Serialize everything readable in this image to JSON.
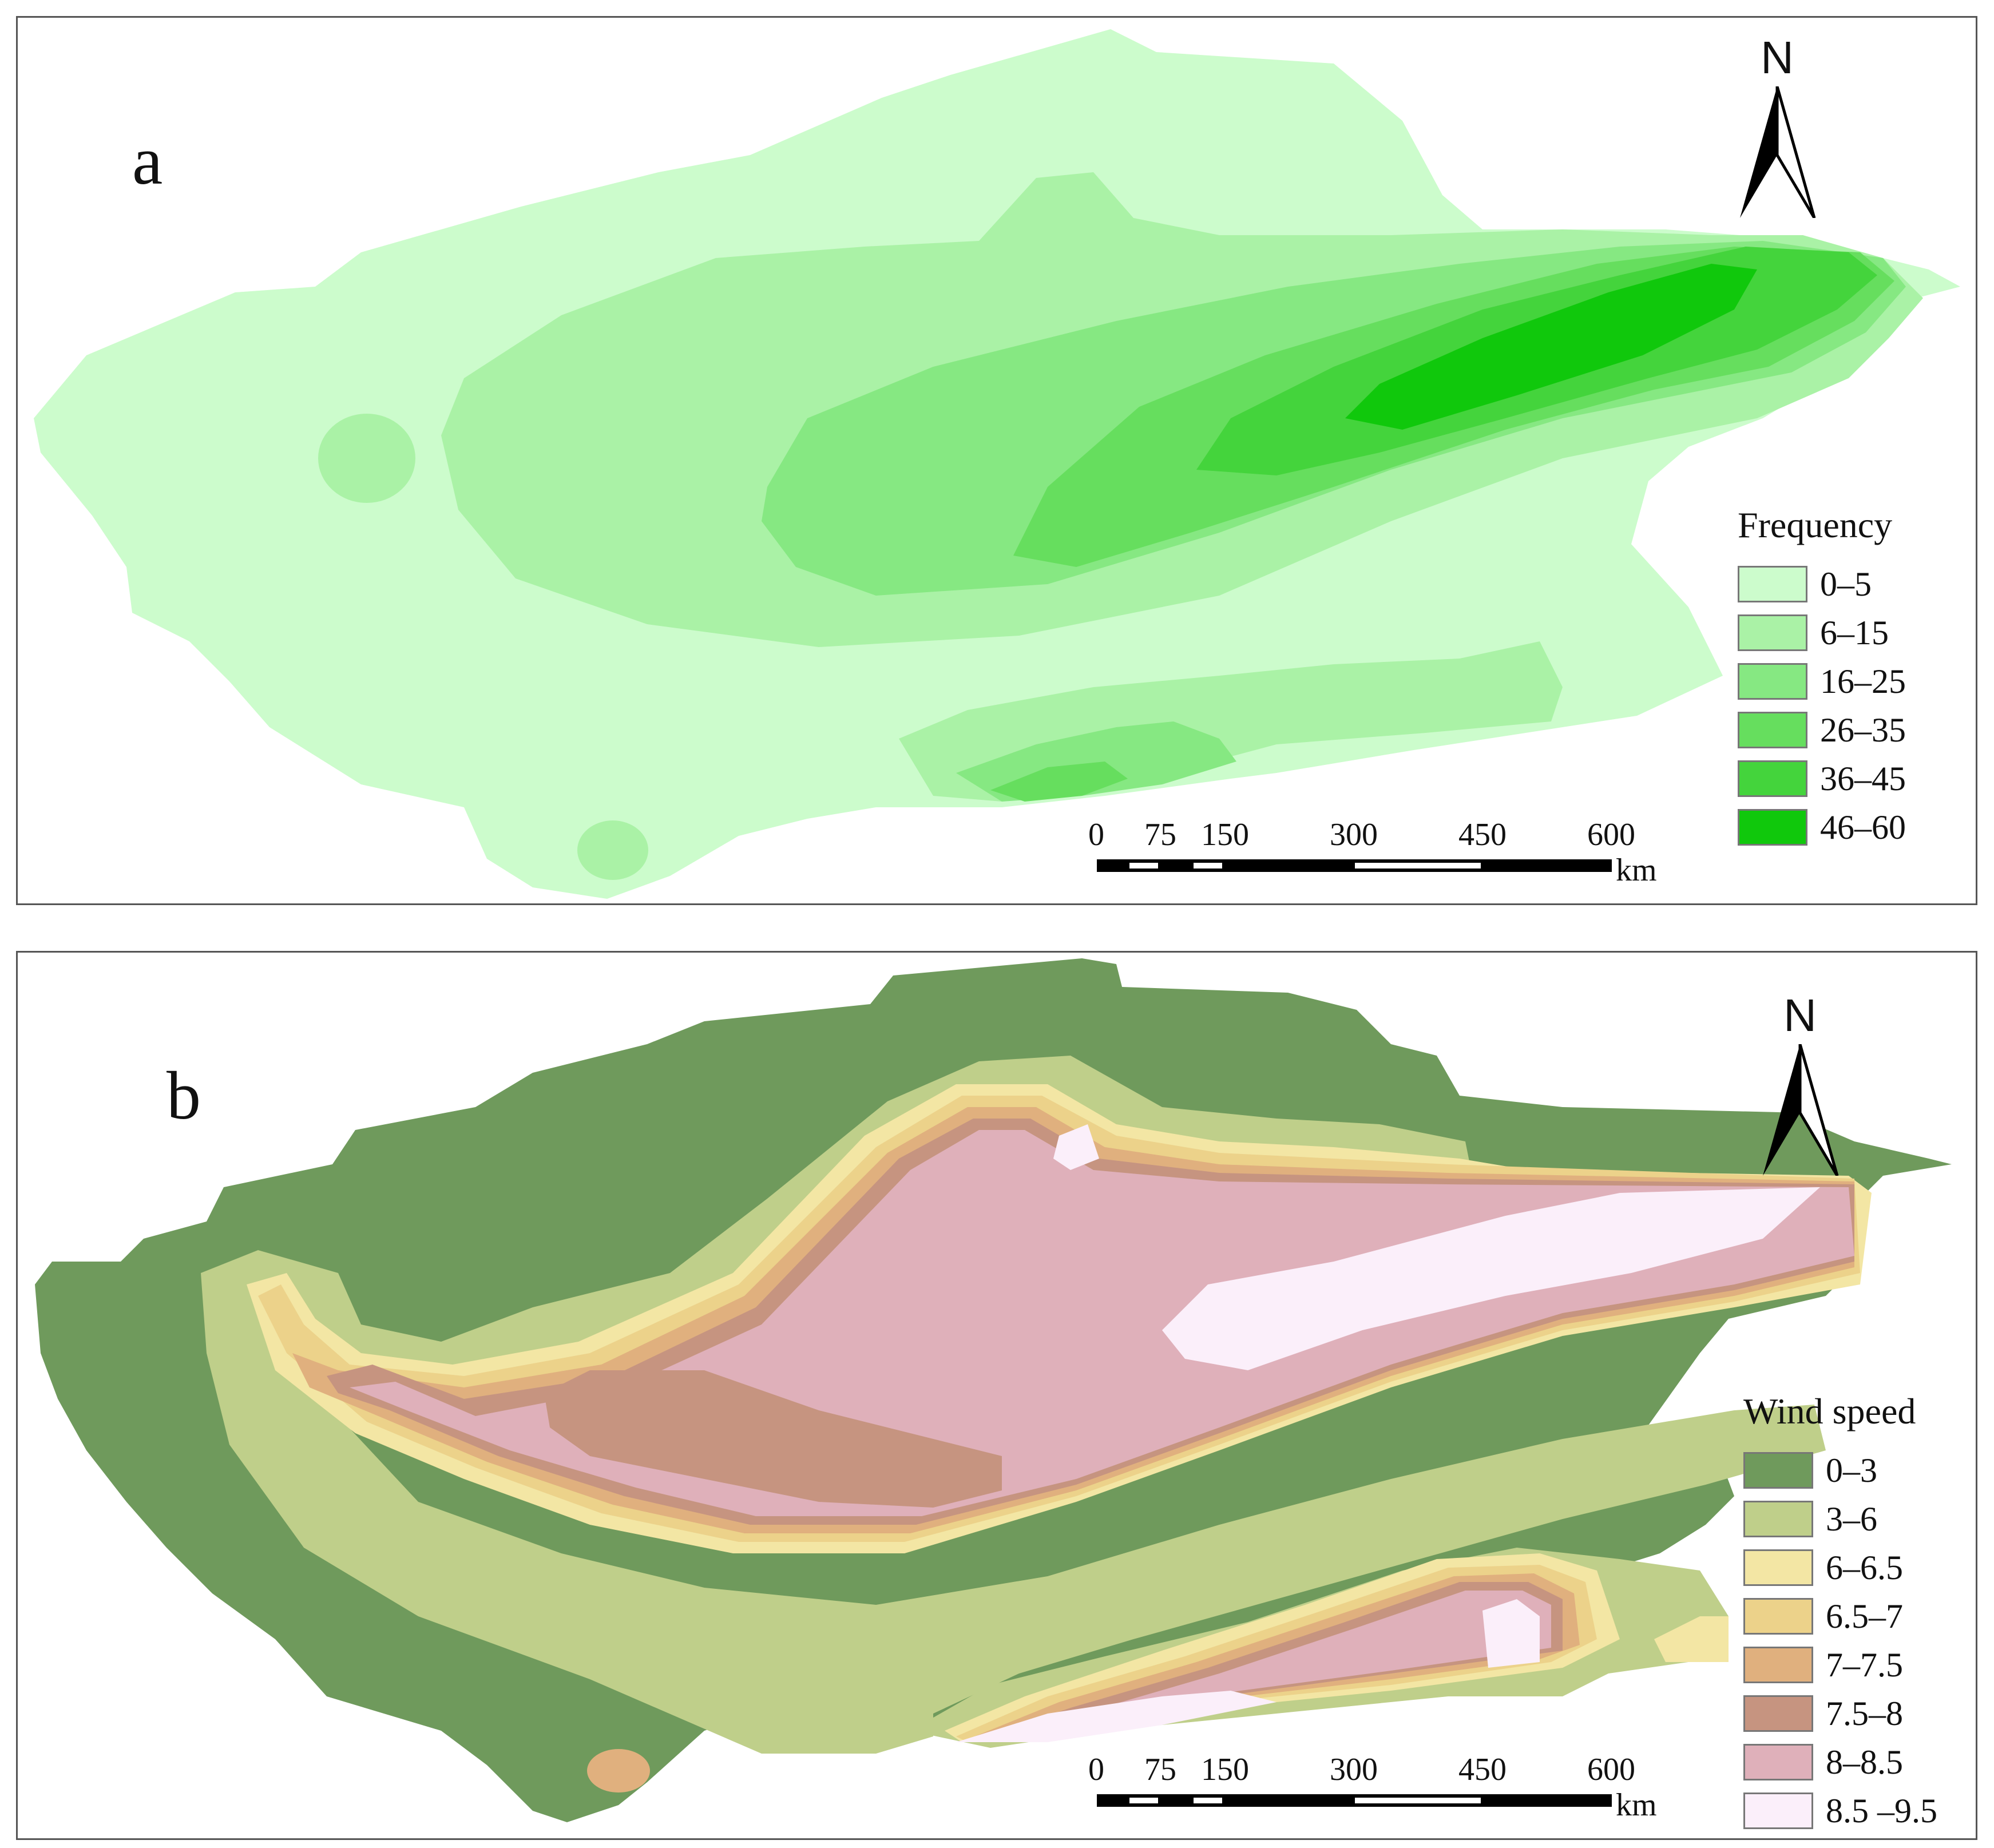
{
  "figure": {
    "panel_a": {
      "letter": "a",
      "north_label": "N",
      "legend": {
        "title": "Frequency",
        "classes": [
          {
            "label": "0–5",
            "color": "#ccfccc"
          },
          {
            "label": "6–15",
            "color": "#aaf2a6"
          },
          {
            "label": "16–25",
            "color": "#86e882"
          },
          {
            "label": "26–35",
            "color": "#66de5e"
          },
          {
            "label": "36–45",
            "color": "#44d43c"
          },
          {
            "label": "46–60",
            "color": "#10c80c"
          }
        ]
      },
      "scale_bar": {
        "ticks": [
          "0",
          "75",
          "150",
          "300",
          "450",
          "600"
        ],
        "unit": "km"
      }
    },
    "panel_b": {
      "letter": "b",
      "north_label": "N",
      "legend": {
        "title": "Wind speed",
        "classes": [
          {
            "label": "0–3",
            "color": "#6f9a5c"
          },
          {
            "label": "3–6",
            "color": "#bfcf8a"
          },
          {
            "label": "6–6.5",
            "color": "#f3e6a4"
          },
          {
            "label": "6.5–7",
            "color": "#ecd28a"
          },
          {
            "label": "7–7.5",
            "color": "#e0b07e"
          },
          {
            "label": "7.5–8",
            "color": "#c69480"
          },
          {
            "label": "8–8.5",
            "color": "#dfb0ba"
          },
          {
            "label": "8.5 –9.5",
            "color": "#fbeffa"
          }
        ]
      },
      "scale_bar": {
        "ticks": [
          "0",
          "75",
          "150",
          "300",
          "450",
          "600"
        ],
        "unit": "km"
      }
    }
  }
}
